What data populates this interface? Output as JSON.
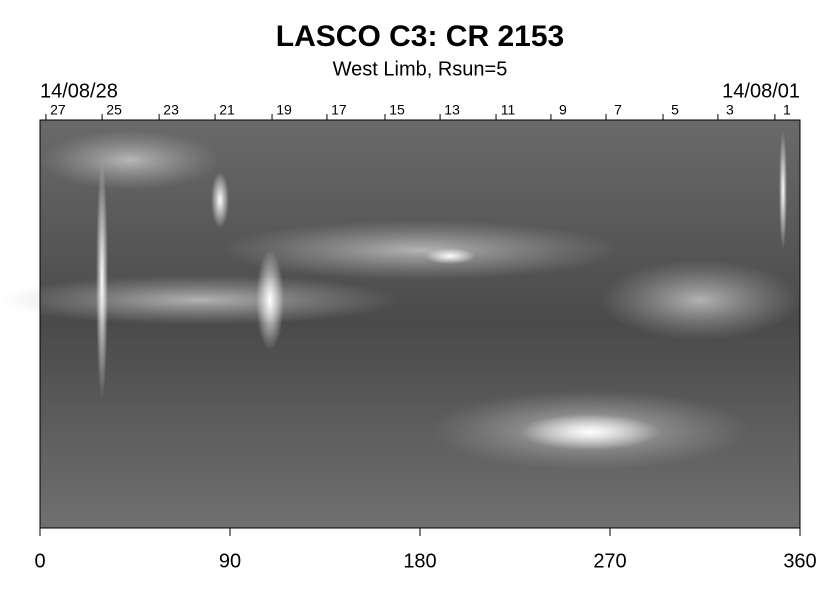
{
  "chart_data": {
    "type": "image",
    "title": "LASCO C3: CR 2153",
    "subtitle": "West Limb, Rsun=5",
    "start_date": "14/08/28",
    "end_date": "14/08/01",
    "xlim": [
      0,
      360
    ],
    "xticks": [
      0,
      90,
      180,
      270,
      360
    ],
    "x2ticks": [
      {
        "value": 8.5,
        "label": "27"
      },
      {
        "value": 35.1,
        "label": "25"
      },
      {
        "value": 62.1,
        "label": "23"
      },
      {
        "value": 88.6,
        "label": "21"
      },
      {
        "value": 115.6,
        "label": "19"
      },
      {
        "value": 141.6,
        "label": "17"
      },
      {
        "value": 169.1,
        "label": "15"
      },
      {
        "value": 195.2,
        "label": "13"
      },
      {
        "value": 221.7,
        "label": "11"
      },
      {
        "value": 247.7,
        "label": "9"
      },
      {
        "value": 273.8,
        "label": "7"
      },
      {
        "value": 300.8,
        "label": "5"
      },
      {
        "value": 326.8,
        "label": "3"
      },
      {
        "value": 353.8,
        "label": "1"
      }
    ]
  }
}
